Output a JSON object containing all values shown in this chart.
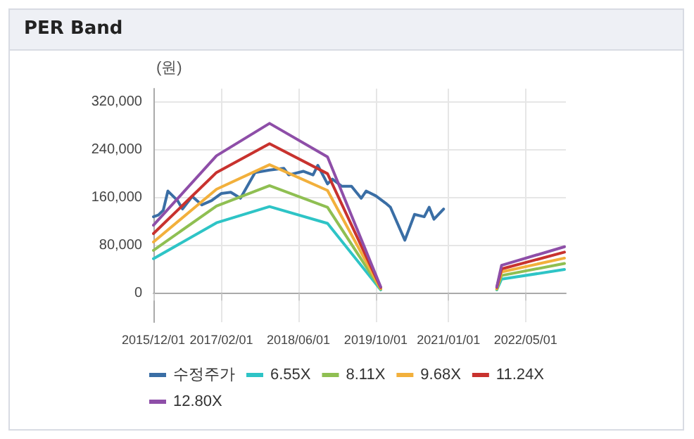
{
  "chart_data": {
    "type": "line",
    "title": "PER Band",
    "ylabel": "(원)",
    "xlim": [
      "2015-12-01",
      "2023-01-10"
    ],
    "xticks": [
      {
        "value": "2015-12-01",
        "label": "2015/12/01"
      },
      {
        "value": "2017-02-01",
        "label": "2017/02/01"
      },
      {
        "value": "2018-06-01",
        "label": "2018/06/01"
      },
      {
        "value": "2019-10-01",
        "label": "2019/10/01"
      },
      {
        "value": "2021-01-01",
        "label": "2021/01/01"
      },
      {
        "value": "2022-05-01",
        "label": "2022/05/01"
      }
    ],
    "ylim": [
      -48000,
      342000
    ],
    "yticks": [
      {
        "value": 0,
        "label": "0"
      },
      {
        "value": 80000,
        "label": "80,000"
      },
      {
        "value": 160000,
        "label": "160,000"
      },
      {
        "value": 240000,
        "label": "240,000"
      },
      {
        "value": 320000,
        "label": "320,000"
      }
    ],
    "grid": true,
    "legend": "bottom",
    "marker": "none",
    "line_style": "solid",
    "series": [
      {
        "name": "수정주가",
        "color": "#3a6ea5",
        "x": [
          "2015-12",
          "2016-01",
          "2016-02",
          "2016-03",
          "2016-05",
          "2016-06",
          "2016-08",
          "2016-10",
          "2016-12",
          "2017-02",
          "2017-04",
          "2017-06",
          "2017-09",
          "2017-12",
          "2018-03",
          "2018-04",
          "2018-07",
          "2018-09",
          "2018-10",
          "2018-12",
          "2019-01",
          "2019-03",
          "2019-05",
          "2019-07",
          "2019-08",
          "2019-10",
          "2019-12",
          "2020-01",
          "2020-04",
          "2020-06",
          "2020-08",
          "2020-09",
          "2020-10",
          "2020-12"
        ],
        "values": [
          128000,
          131000,
          139000,
          171000,
          155000,
          141000,
          162000,
          148000,
          155000,
          167000,
          169000,
          159000,
          202000,
          206000,
          209000,
          198000,
          204000,
          198000,
          214000,
          183000,
          191000,
          179000,
          179000,
          159000,
          171000,
          163000,
          151000,
          144000,
          89000,
          132000,
          128000,
          144000,
          124000,
          141000
        ]
      },
      {
        "name": "6.55X",
        "color": "#2ec4c6",
        "x": [
          "2015-12",
          "2017-01",
          "2017-12",
          "2018-12",
          "2019-11",
          "2020-12",
          "2021-11",
          "2021-12",
          "2023-01"
        ],
        "values": [
          58000,
          118000,
          145000,
          117000,
          6000,
          null,
          6000,
          24000,
          40000
        ]
      },
      {
        "name": "8.11X",
        "color": "#8fbf52",
        "x": [
          "2015-12",
          "2017-01",
          "2017-12",
          "2018-12",
          "2019-11",
          "2020-12",
          "2021-11",
          "2021-12",
          "2023-01"
        ],
        "values": [
          72000,
          146000,
          180000,
          144000,
          7000,
          null,
          7000,
          30000,
          50000
        ]
      },
      {
        "name": "9.68X",
        "color": "#f2b03c",
        "x": [
          "2015-12",
          "2017-01",
          "2017-12",
          "2018-12",
          "2019-11",
          "2020-12",
          "2021-11",
          "2021-12",
          "2023-01"
        ],
        "values": [
          86000,
          174000,
          215000,
          172000,
          8000,
          null,
          8000,
          36000,
          59000
        ]
      },
      {
        "name": "11.24X",
        "color": "#c8322e",
        "x": [
          "2015-12",
          "2017-01",
          "2017-12",
          "2018-12",
          "2019-11",
          "2020-12",
          "2021-11",
          "2021-12",
          "2023-01"
        ],
        "values": [
          100000,
          202000,
          250000,
          200000,
          10000,
          null,
          10000,
          41000,
          69000
        ]
      },
      {
        "name": "12.80X",
        "color": "#8e4ea8",
        "x": [
          "2015-12",
          "2017-01",
          "2017-12",
          "2018-12",
          "2019-11",
          "2020-12",
          "2021-11",
          "2021-12",
          "2023-01"
        ],
        "values": [
          114000,
          230000,
          284000,
          228000,
          11000,
          null,
          11000,
          47000,
          78000
        ]
      }
    ]
  }
}
